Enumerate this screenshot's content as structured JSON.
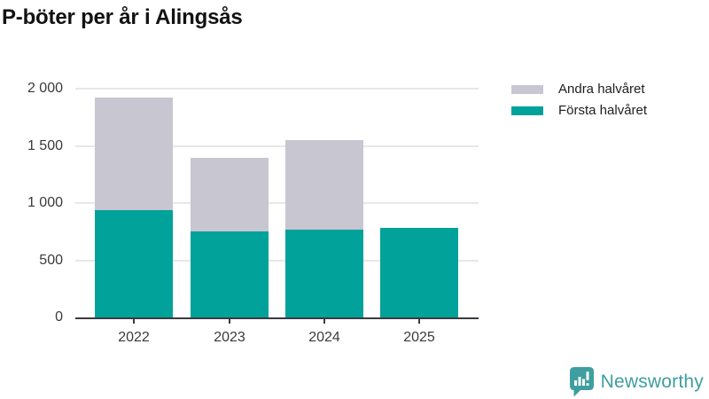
{
  "title": "P-böter per år i Alingsås",
  "legend": {
    "items": [
      {
        "label": "Andra halvåret",
        "color": "#c8c6d1"
      },
      {
        "label": "Första halvåret",
        "color": "#00a29a"
      }
    ]
  },
  "chart_data": {
    "type": "bar",
    "stacked": true,
    "title": "P-böter per år i Alingsås",
    "categories": [
      "2022",
      "2023",
      "2024",
      "2025"
    ],
    "series": [
      {
        "name": "Första halvåret",
        "color": "#00a29a",
        "values": [
          935,
          750,
          765,
          780
        ]
      },
      {
        "name": "Andra halvåret",
        "color": "#c8c6d1",
        "values": [
          985,
          645,
          785,
          0
        ]
      }
    ],
    "xlabel": "",
    "ylabel": "",
    "ylim": [
      0,
      2000
    ],
    "yticks": [
      0,
      500,
      1000,
      1500,
      2000
    ],
    "ytick_labels": [
      "0",
      "500",
      "1 000",
      "1 500",
      "2 000"
    ],
    "grid": true,
    "legend_position": "top-right"
  },
  "branding": {
    "logo_text": "Newsworthy",
    "logo_color": "#3f9e9f",
    "logo_icon": "bar-chart-speech-bubble-icon"
  },
  "colors": {
    "first_half": "#00a29a",
    "second_half": "#c8c6d1",
    "axis": "#3b3b42",
    "gridline": "#e7e7ea",
    "text": "#3a3a3a",
    "title_text": "#121212",
    "background": "#ffffff"
  }
}
